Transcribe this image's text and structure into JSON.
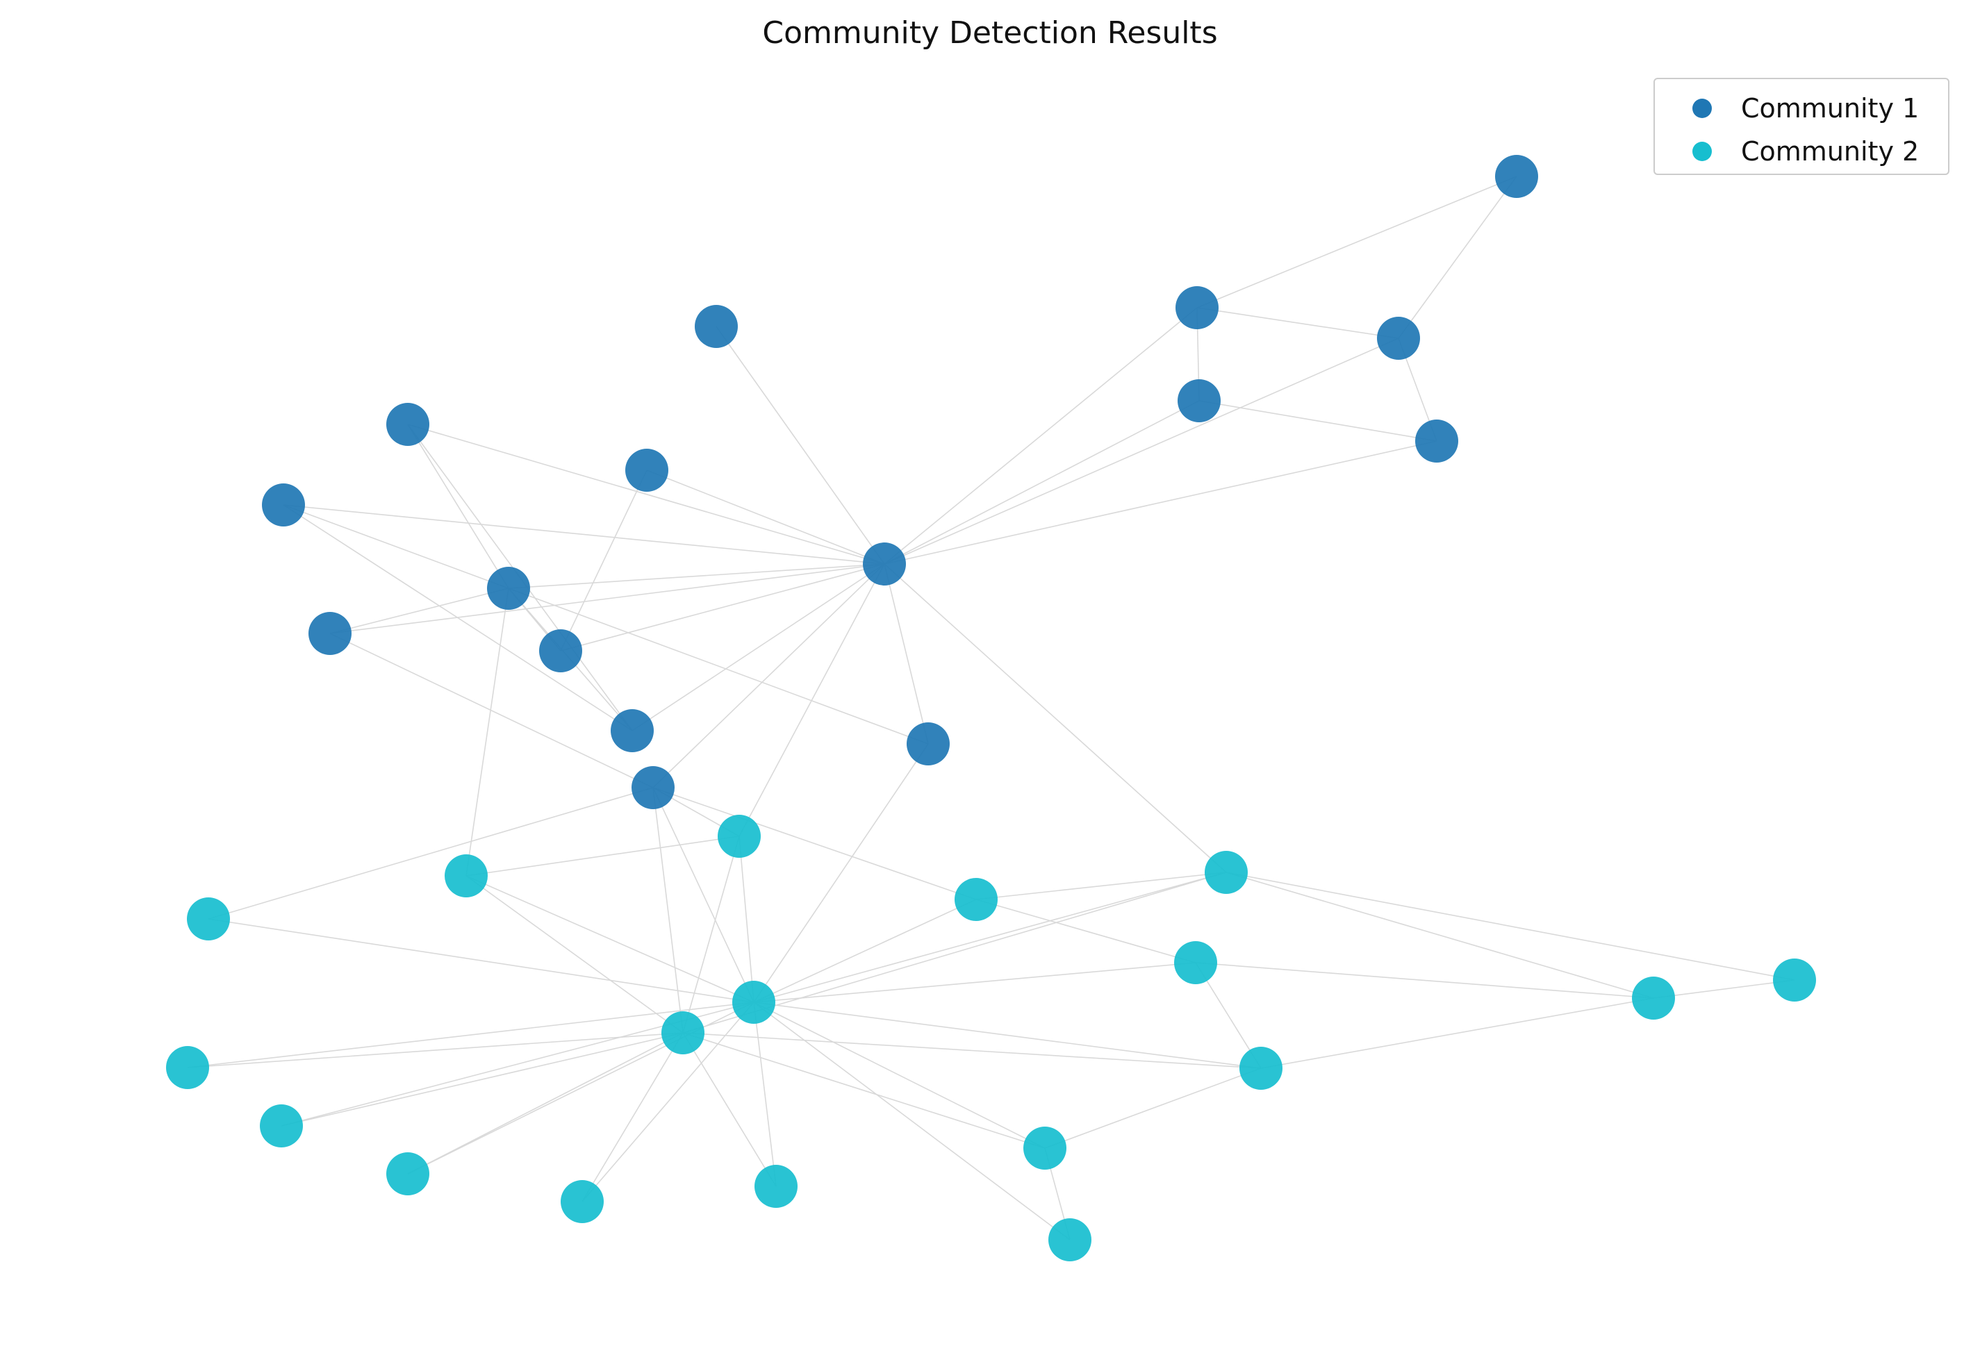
{
  "title": "Community Detection Results",
  "colors": {
    "community_1": "#1f77b4",
    "community_2": "#17becf",
    "edge": "#d9d9d9"
  },
  "legend": {
    "entries": [
      {
        "label": "Community 1",
        "color": "#1f77b4"
      },
      {
        "label": "Community 2",
        "color": "#17becf"
      }
    ]
  },
  "graph": {
    "communities": [
      "Community 1",
      "Community 2"
    ],
    "node_count": 34,
    "community_1_nodes": 16,
    "community_2_nodes": 18
  }
}
